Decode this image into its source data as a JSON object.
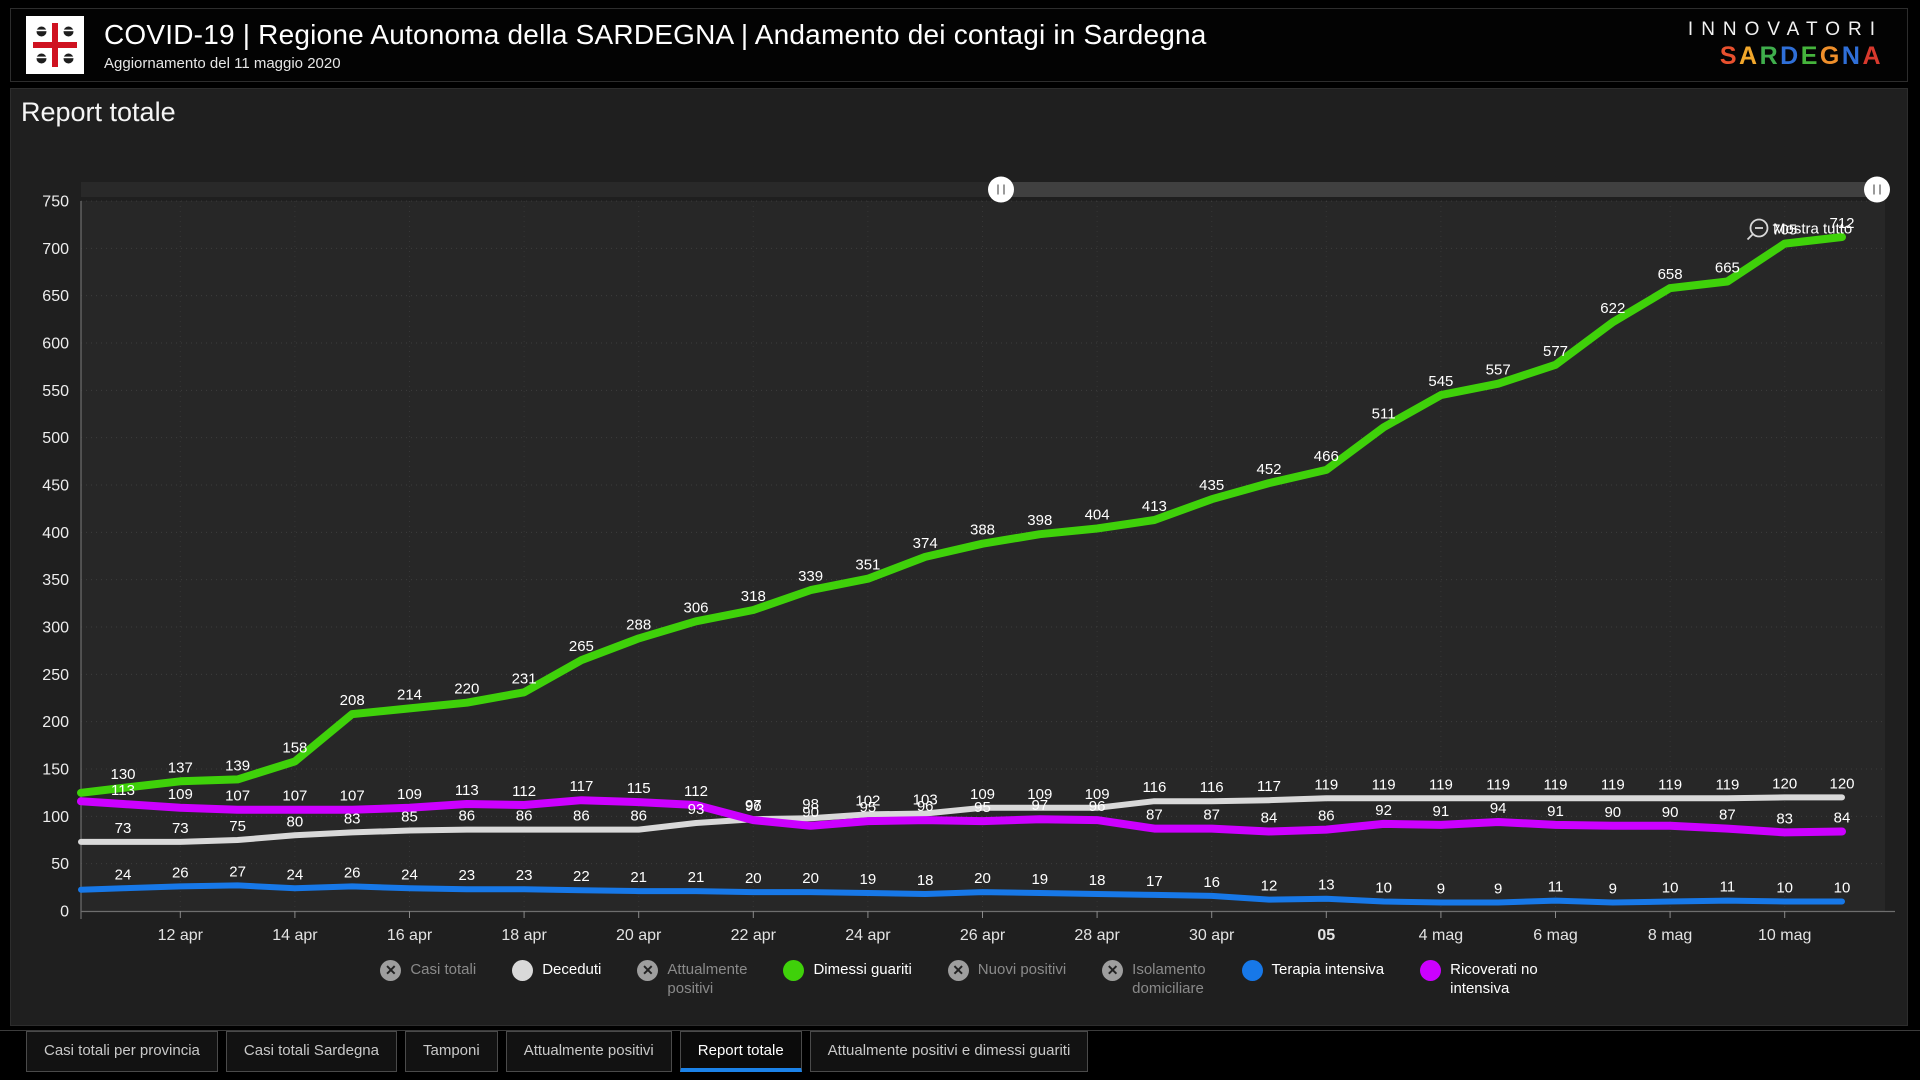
{
  "header": {
    "title": "COVID-19 | Regione Autonoma della SARDEGNA | Andamento dei contagi in Sardegna",
    "subtitle": "Aggiornamento del 11 maggio 2020",
    "brand": {
      "line1": "INNOVATORI",
      "line2": "SARDEGNA",
      "line2_colors": [
        "#e8502e",
        "#f2a72b",
        "#3fae4c",
        "#2f6fd8",
        "#45b43c",
        "#ef8f2b",
        "#2f6fd8",
        "#d8392d"
      ]
    }
  },
  "report": {
    "title": "Report totale"
  },
  "chart_data": {
    "type": "line",
    "title": "Report totale",
    "x_tick_labels": [
      "12 apr",
      "14 apr",
      "16 apr",
      "18 apr",
      "20 apr",
      "22 apr",
      "24 apr",
      "26 apr",
      "28 apr",
      "30 apr",
      "05",
      "4 mag",
      "6 mag",
      "8 mag",
      "10 mag"
    ],
    "x_tick_indices": [
      1,
      3,
      5,
      7,
      9,
      11,
      13,
      15,
      17,
      19,
      21,
      23,
      25,
      27,
      29
    ],
    "x_bold_label": "05",
    "ylim": [
      0,
      750
    ],
    "y_step": 50,
    "grid": true,
    "legend_position": "bottom",
    "show_all_label": "Mostra tutto",
    "series": [
      {
        "name": "Deceduti",
        "color": "#d9d9d9",
        "width": 6,
        "values": [
          73,
          73,
          75,
          80,
          83,
          85,
          86,
          86,
          86,
          86,
          93,
          97,
          98,
          102,
          103,
          109,
          109,
          109,
          116,
          116,
          117,
          119,
          119,
          119,
          119,
          119,
          119,
          119,
          119,
          120,
          120
        ]
      },
      {
        "name": "Dimessi guariti",
        "color": "#3fd10a",
        "width": 8,
        "values": [
          130,
          137,
          139,
          158,
          208,
          214,
          220,
          231,
          265,
          288,
          306,
          318,
          339,
          351,
          374,
          388,
          398,
          404,
          413,
          435,
          452,
          466,
          511,
          545,
          557,
          577,
          622,
          658,
          665,
          705,
          712
        ]
      },
      {
        "name": "Terapia intensiva",
        "color": "#1778e8",
        "width": 6,
        "values": [
          24,
          26,
          27,
          24,
          26,
          24,
          23,
          23,
          22,
          21,
          21,
          20,
          20,
          19,
          18,
          20,
          19,
          18,
          17,
          16,
          12,
          13,
          10,
          9,
          9,
          11,
          9,
          10,
          11,
          10,
          10
        ]
      },
      {
        "name": "Ricoverati no intensiva",
        "color": "#cc00ff",
        "width": 8,
        "values": [
          113,
          109,
          107,
          107,
          107,
          109,
          113,
          112,
          117,
          115,
          112,
          96,
          90,
          95,
          96,
          95,
          97,
          96,
          87,
          87,
          84,
          86,
          92,
          91,
          94,
          91,
          90,
          90,
          87,
          83,
          84
        ]
      }
    ]
  },
  "legend": {
    "items": [
      {
        "label": "Casi totali",
        "disabled": true
      },
      {
        "label": "Deceduti",
        "color": "#d9d9d9"
      },
      {
        "label": "Attualmente\npositivi",
        "disabled": true
      },
      {
        "label": "Dimessi guariti",
        "color": "#3fd10a"
      },
      {
        "label": "Nuovi positivi",
        "disabled": true
      },
      {
        "label": "Isolamento\ndomiciliare",
        "disabled": true
      },
      {
        "label": "Terapia intensiva",
        "color": "#1778e8"
      },
      {
        "label": "Ricoverati no\nintensiva",
        "color": "#cc00ff"
      }
    ]
  },
  "tabs": {
    "items": [
      "Casi totali per provincia",
      "Casi totali Sardegna",
      "Tamponi",
      "Attualmente positivi",
      "Report totale",
      "Attualmente positivi e dimessi guariti"
    ],
    "active": "Report totale"
  }
}
